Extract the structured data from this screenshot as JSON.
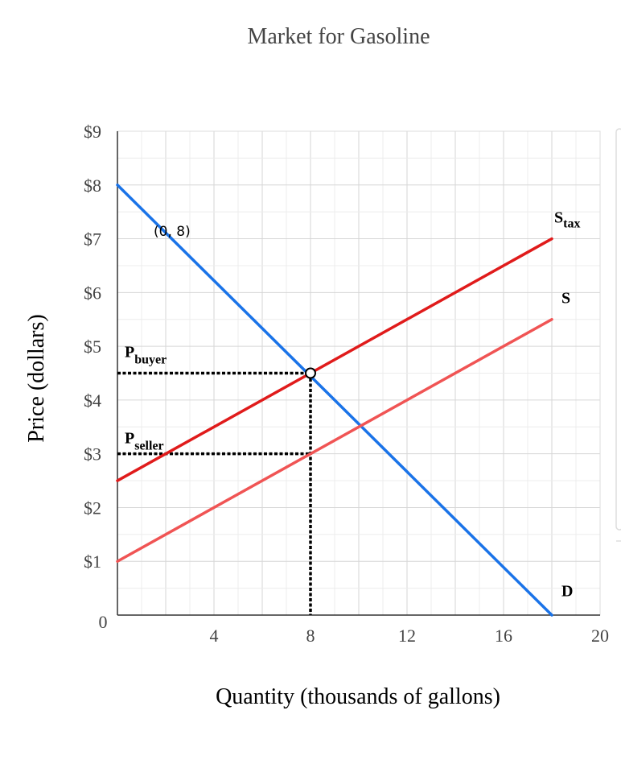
{
  "chart_data": {
    "type": "line",
    "title": "Market for Gasoline",
    "xlabel": "Quantity (thousands of gallons)",
    "ylabel": "Price (dollars)",
    "xlim": [
      0,
      20
    ],
    "ylim": [
      0,
      9
    ],
    "grid": true,
    "x_ticks": [
      {
        "value": 0,
        "label": "0"
      },
      {
        "value": 4,
        "label": "4"
      },
      {
        "value": 8,
        "label": "8"
      },
      {
        "value": 12,
        "label": "12"
      },
      {
        "value": 16,
        "label": "16"
      },
      {
        "value": 20,
        "label": "20"
      }
    ],
    "y_ticks": [
      {
        "value": 1,
        "label": "$1"
      },
      {
        "value": 2,
        "label": "$2"
      },
      {
        "value": 3,
        "label": "$3"
      },
      {
        "value": 4,
        "label": "$4"
      },
      {
        "value": 5,
        "label": "$5"
      },
      {
        "value": 6,
        "label": "$6"
      },
      {
        "value": 7,
        "label": "$7"
      },
      {
        "value": 8,
        "label": "$8"
      },
      {
        "value": 9,
        "label": "$9"
      }
    ],
    "series": [
      {
        "name": "D",
        "label_main": "D",
        "label_sub": "",
        "color": "#1a73e8",
        "points": [
          [
            0,
            8
          ],
          [
            18,
            0
          ]
        ],
        "label_at": [
          18.4,
          0.35
        ]
      },
      {
        "name": "S",
        "label_main": "S",
        "label_sub": "",
        "color": "#f05454",
        "points": [
          [
            0,
            1
          ],
          [
            18,
            5.5
          ]
        ],
        "label_at": [
          18.4,
          5.8
        ]
      },
      {
        "name": "S_tax",
        "label_main": "S",
        "label_sub": "tax",
        "color": "#e01b1b",
        "points": [
          [
            0,
            2.5
          ],
          [
            18,
            7
          ]
        ],
        "label_at": [
          18.1,
          7.3
        ]
      }
    ],
    "annotations": {
      "point_label": {
        "text": "(0, 8)",
        "x": 1.5,
        "y": 7.05
      },
      "equilibrium": {
        "x": 8,
        "y": 4.5
      },
      "p_buyer": {
        "main": "P",
        "sub": "buyer",
        "price": 4.5,
        "label_at": [
          0.3,
          4.8
        ]
      },
      "p_seller": {
        "main": "P",
        "sub": "seller",
        "price": 3,
        "label_at": [
          0.3,
          3.2
        ]
      },
      "quantity_line": {
        "x": 8
      }
    }
  }
}
